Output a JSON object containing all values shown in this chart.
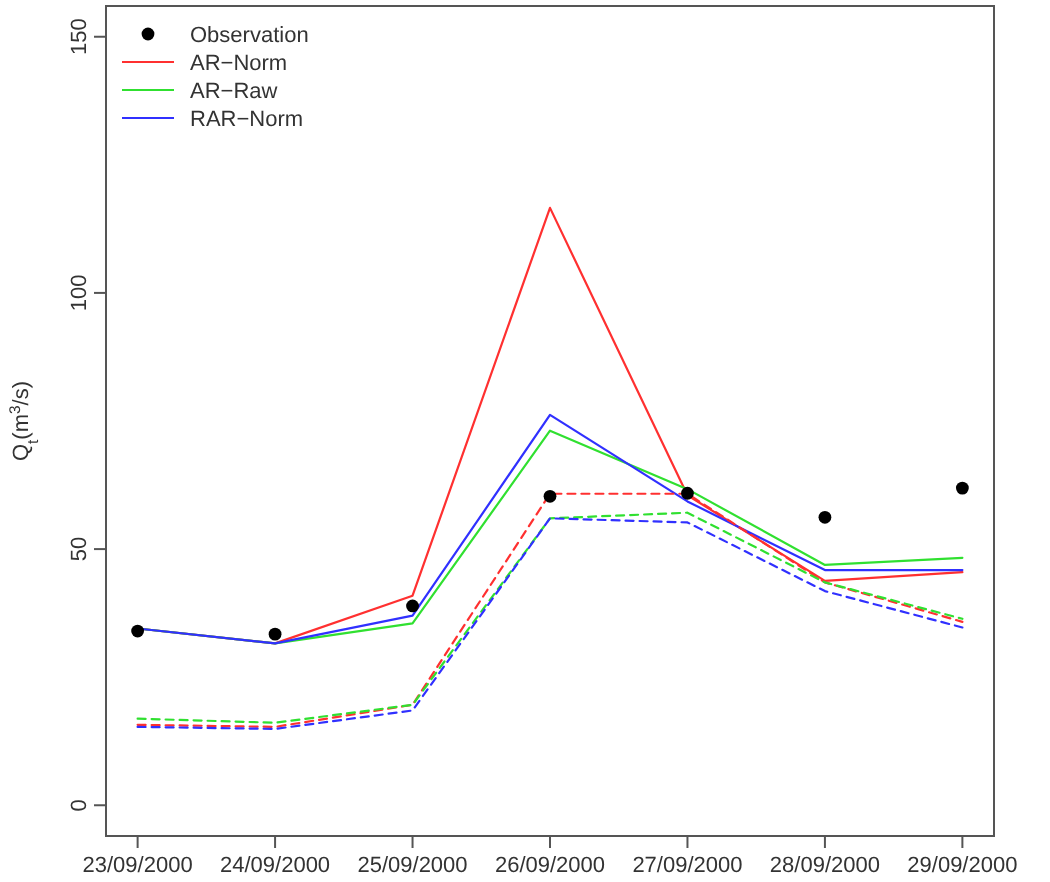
{
  "chart_data": {
    "type": "line",
    "ylabel": "Q$_{t}$(m$^{3}$/s)",
    "categories": [
      "23/09/2000",
      "24/09/2000",
      "25/09/2000",
      "26/09/2000",
      "27/09/2000",
      "28/09/2000",
      "29/09/2000"
    ],
    "ylim": [
      -6,
      156
    ],
    "yticks": [
      0,
      50,
      100,
      150
    ],
    "grid": false,
    "legend": "top left",
    "series": [
      {
        "name": "Observation",
        "type": "scatter",
        "marker": "circle",
        "color": "#000000",
        "values": [
          34,
          33.4,
          38.9,
          60.3,
          60.9,
          56.2,
          61.9
        ]
      },
      {
        "name": "AR−Norm",
        "color": "#ff3030",
        "line_style": "solid",
        "values": [
          34.5,
          31.6,
          40.9,
          116.6,
          60.5,
          43.8,
          45.5
        ]
      },
      {
        "name": "AR−Raw",
        "color": "#30e030",
        "line_style": "solid",
        "values": [
          34.5,
          31.6,
          35.5,
          73.1,
          61.7,
          46.9,
          48.3
        ]
      },
      {
        "name": "RAR−Norm",
        "color": "#3030ff",
        "line_style": "solid",
        "values": [
          34.5,
          31.6,
          37,
          76.2,
          59.3,
          45.9,
          45.9
        ]
      },
      {
        "color": "#ff3030",
        "line_style": "dashed",
        "values": [
          15.7,
          15.3,
          19.6,
          60.8,
          60.8,
          43.5,
          35.8
        ]
      },
      {
        "color": "#30e030",
        "line_style": "dashed",
        "values": [
          16.9,
          16.1,
          19.6,
          56,
          57.1,
          43.5,
          36.4
        ]
      },
      {
        "color": "#3030ff",
        "line_style": "dashed",
        "values": [
          15.3,
          14.9,
          18.5,
          56,
          55.2,
          41.8,
          34.7
        ]
      }
    ]
  }
}
